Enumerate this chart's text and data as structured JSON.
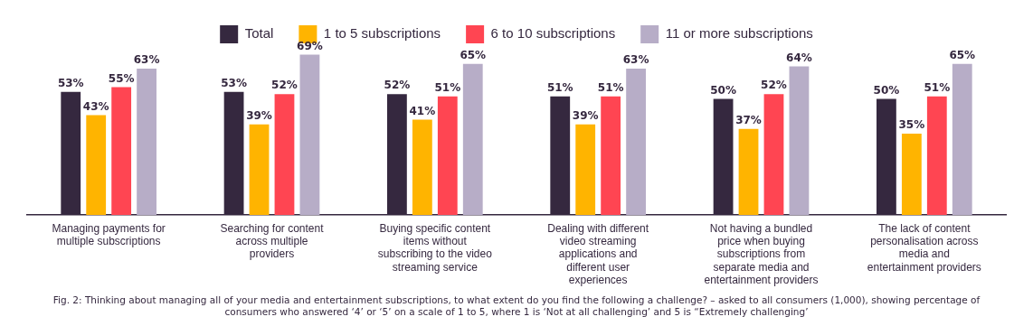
{
  "chart_data": {
    "type": "bar",
    "categories": [
      "Managing payments for multiple subscriptions",
      "Searching for content across multiple providers",
      "Buying specific content items without subscribing to the video streaming service",
      "Dealing with different video streaming applications and different user experiences",
      "Not having a bundled price when buying subscriptions from separate media and entertainment providers",
      "The lack of content personalisation across media and entertainment providers"
    ],
    "series": [
      {
        "name": "Total",
        "color": "#35283f",
        "values": [
          53,
          53,
          52,
          51,
          50,
          50
        ],
        "value_labels": [
          "53%",
          "53%",
          "52%",
          "51%",
          "50%",
          "50%"
        ]
      },
      {
        "name": "1 to 5 subscriptions",
        "color": "#ffb400",
        "values": [
          43,
          39,
          41,
          39,
          37,
          35
        ],
        "value_labels": [
          "43%",
          "39%",
          "41%",
          "39%",
          "37%",
          "35%"
        ]
      },
      {
        "name": "6 to 10 subscriptions",
        "color": "#ff4552",
        "values": [
          55,
          52,
          51,
          51,
          52,
          51
        ],
        "value_labels": [
          "55%",
          "52%",
          "51%",
          "51%",
          "52%",
          "51%"
        ]
      },
      {
        "name": "11 or more subscriptions",
        "color": "#b7adc7",
        "values": [
          63,
          69,
          65,
          63,
          64,
          65
        ],
        "value_labels": [
          "63%",
          "69%",
          "65%",
          "63%",
          "64%",
          "65%"
        ]
      }
    ],
    "legend": "top",
    "grid": false,
    "annotations": [
      "Fig. 2: Thinking about managing all of your media and entertainment subscriptions, to what extent do you find the following a challenge? – asked to all consumers (1,000), showing percentage of consumers who answered ‘4’ or ‘5’ on a scale of 1 to 5, where 1 is ‘Not at all challenging’ and 5 is “Extremely challenging’"
    ]
  }
}
